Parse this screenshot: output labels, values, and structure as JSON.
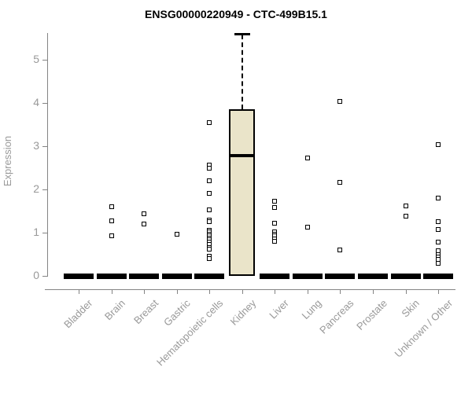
{
  "chart_data": {
    "type": "boxplot",
    "title": "ENSG00000220949 - CTC-499B15.1",
    "ylabel": "Expression",
    "ylim": [
      0,
      5.7
    ],
    "yticks": [
      0,
      1,
      2,
      3,
      4,
      5
    ],
    "grid": false,
    "legend": "none",
    "colors": {
      "box_fill": "#EAE4C9",
      "box_border": "#000000",
      "axis_line": "#848484",
      "tick_label": "#999999",
      "title_color": "#000000",
      "point_fill": "#ffffff",
      "point_border": "#000000"
    },
    "categories": [
      "Bladder",
      "Brain",
      "Breast",
      "Gastric",
      "Hematopoietic cells",
      "Kidney",
      "Liver",
      "Lung",
      "Pancreas",
      "Prostate",
      "Skin",
      "Unknown / Other"
    ],
    "series": [
      {
        "category": "Bladder",
        "box": {
          "whisker_low": 0,
          "q1": 0,
          "median": 0,
          "q3": 0,
          "whisker_high": 0
        },
        "points": []
      },
      {
        "category": "Brain",
        "box": {
          "whisker_low": 0,
          "q1": 0,
          "median": 0,
          "q3": 0,
          "whisker_high": 0
        },
        "points": [
          1.6,
          1.27,
          0.92
        ]
      },
      {
        "category": "Breast",
        "box": {
          "whisker_low": 0,
          "q1": 0,
          "median": 0,
          "q3": 0,
          "whisker_high": 0
        },
        "points": [
          1.43,
          1.2
        ]
      },
      {
        "category": "Gastric",
        "box": {
          "whisker_low": 0,
          "q1": 0,
          "median": 0,
          "q3": 0,
          "whisker_high": 0
        },
        "points": [
          0.97
        ]
      },
      {
        "category": "Hematopoietic cells",
        "box": {
          "whisker_low": 0,
          "q1": 0,
          "median": 0,
          "q3": 0,
          "whisker_high": 0
        },
        "points": [
          3.54,
          2.57,
          2.5,
          2.2,
          1.91,
          1.53,
          1.3,
          1.25,
          1.06,
          1.01,
          0.97,
          0.93,
          0.88,
          0.84,
          0.79,
          0.72,
          0.66,
          0.61,
          0.45,
          0.4
        ]
      },
      {
        "category": "Kidney",
        "box": {
          "whisker_low": 0,
          "q1": 0,
          "median": 2.79,
          "q3": 3.86,
          "whisker_high": 5.58
        },
        "points": []
      },
      {
        "category": "Liver",
        "box": {
          "whisker_low": 0,
          "q1": 0,
          "median": 0,
          "q3": 0,
          "whisker_high": 0
        },
        "points": [
          1.73,
          1.58,
          1.22,
          1.02,
          0.97,
          0.92,
          0.86,
          0.8
        ]
      },
      {
        "category": "Lung",
        "box": {
          "whisker_low": 0,
          "q1": 0,
          "median": 0,
          "q3": 0,
          "whisker_high": 0
        },
        "points": [
          2.72,
          1.12
        ]
      },
      {
        "category": "Pancreas",
        "box": {
          "whisker_low": 0,
          "q1": 0,
          "median": 0,
          "q3": 0,
          "whisker_high": 0
        },
        "points": [
          4.03,
          2.16,
          0.6
        ]
      },
      {
        "category": "Prostate",
        "box": {
          "whisker_low": 0,
          "q1": 0,
          "median": 0,
          "q3": 0,
          "whisker_high": 0
        },
        "points": []
      },
      {
        "category": "Skin",
        "box": {
          "whisker_low": 0,
          "q1": 0,
          "median": 0,
          "q3": 0,
          "whisker_high": 0
        },
        "points": [
          1.62,
          1.38
        ]
      },
      {
        "category": "Unknown / Other",
        "box": {
          "whisker_low": 0,
          "q1": 0,
          "median": 0,
          "q3": 0,
          "whisker_high": 0
        },
        "points": [
          3.04,
          1.8,
          1.25,
          1.08,
          0.78,
          0.58,
          0.5,
          0.44,
          0.38,
          0.3
        ]
      }
    ]
  }
}
